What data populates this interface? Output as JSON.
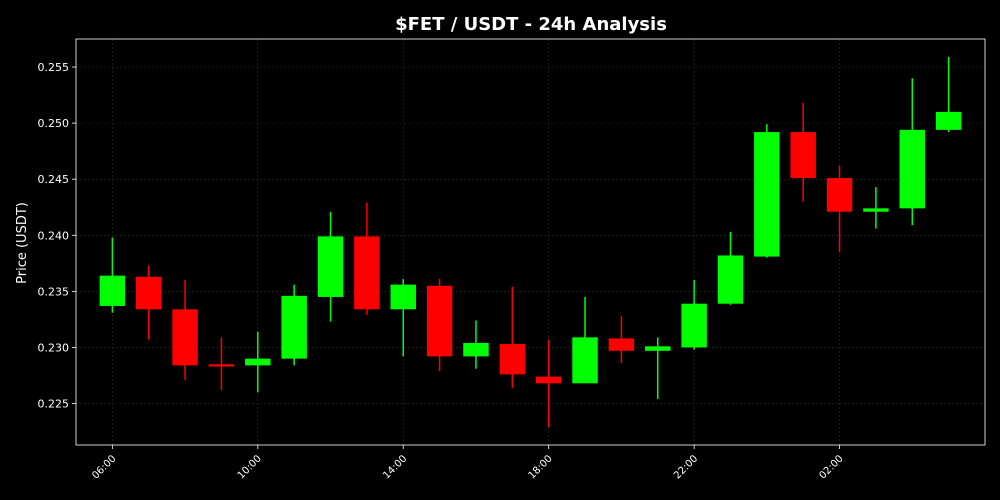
{
  "chart_data": {
    "type": "candlestick",
    "title": "$FET / USDT - 24h Analysis",
    "ylabel": "Price (USDT)",
    "xlabel": "",
    "ylim": [
      0.2213,
      0.2575
    ],
    "yticks": [
      "0.225",
      "0.230",
      "0.235",
      "0.240",
      "0.245",
      "0.250",
      "0.255"
    ],
    "ytick_values": [
      0.225,
      0.23,
      0.235,
      0.24,
      0.245,
      0.25,
      0.255
    ],
    "xticks": [
      "06:00",
      "10:00",
      "14:00",
      "18:00",
      "22:00",
      "02:00"
    ],
    "xtick_index": [
      0,
      4,
      8,
      12,
      16,
      20
    ],
    "xlim_index": [
      -1,
      24
    ],
    "grid": true,
    "colors": {
      "up": "#00ff00",
      "down": "#ff0000",
      "grid": "#1f3a1f",
      "frame": "#ffffff"
    },
    "candles": [
      {
        "open": 0.2337,
        "high": 0.2398,
        "low": 0.2331,
        "close": 0.2364
      },
      {
        "open": 0.2363,
        "high": 0.2373,
        "low": 0.2307,
        "close": 0.2334
      },
      {
        "open": 0.2334,
        "high": 0.236,
        "low": 0.2271,
        "close": 0.2284
      },
      {
        "open": 0.2285,
        "high": 0.2309,
        "low": 0.2262,
        "close": 0.2283
      },
      {
        "open": 0.2284,
        "high": 0.2314,
        "low": 0.226,
        "close": 0.229
      },
      {
        "open": 0.229,
        "high": 0.2356,
        "low": 0.2284,
        "close": 0.2346
      },
      {
        "open": 0.2345,
        "high": 0.2421,
        "low": 0.2323,
        "close": 0.2399
      },
      {
        "open": 0.2399,
        "high": 0.2429,
        "low": 0.2329,
        "close": 0.2334
      },
      {
        "open": 0.2334,
        "high": 0.2361,
        "low": 0.2292,
        "close": 0.2356
      },
      {
        "open": 0.2355,
        "high": 0.2361,
        "low": 0.2279,
        "close": 0.2292
      },
      {
        "open": 0.2292,
        "high": 0.2324,
        "low": 0.2281,
        "close": 0.2304
      },
      {
        "open": 0.2303,
        "high": 0.2354,
        "low": 0.2264,
        "close": 0.2276
      },
      {
        "open": 0.2274,
        "high": 0.2307,
        "low": 0.2229,
        "close": 0.2268
      },
      {
        "open": 0.2268,
        "high": 0.2345,
        "low": 0.2268,
        "close": 0.2309
      },
      {
        "open": 0.2308,
        "high": 0.2328,
        "low": 0.2286,
        "close": 0.2297
      },
      {
        "open": 0.2297,
        "high": 0.2309,
        "low": 0.2254,
        "close": 0.2301
      },
      {
        "open": 0.23,
        "high": 0.236,
        "low": 0.2298,
        "close": 0.2339
      },
      {
        "open": 0.2339,
        "high": 0.2403,
        "low": 0.2338,
        "close": 0.2382
      },
      {
        "open": 0.2381,
        "high": 0.2499,
        "low": 0.238,
        "close": 0.2492
      },
      {
        "open": 0.2492,
        "high": 0.2518,
        "low": 0.243,
        "close": 0.2451
      },
      {
        "open": 0.2451,
        "high": 0.2462,
        "low": 0.2385,
        "close": 0.2421
      },
      {
        "open": 0.2421,
        "high": 0.2443,
        "low": 0.2406,
        "close": 0.2424
      },
      {
        "open": 0.2424,
        "high": 0.254,
        "low": 0.2409,
        "close": 0.2494
      },
      {
        "open": 0.2494,
        "high": 0.2559,
        "low": 0.2492,
        "close": 0.251
      }
    ]
  }
}
